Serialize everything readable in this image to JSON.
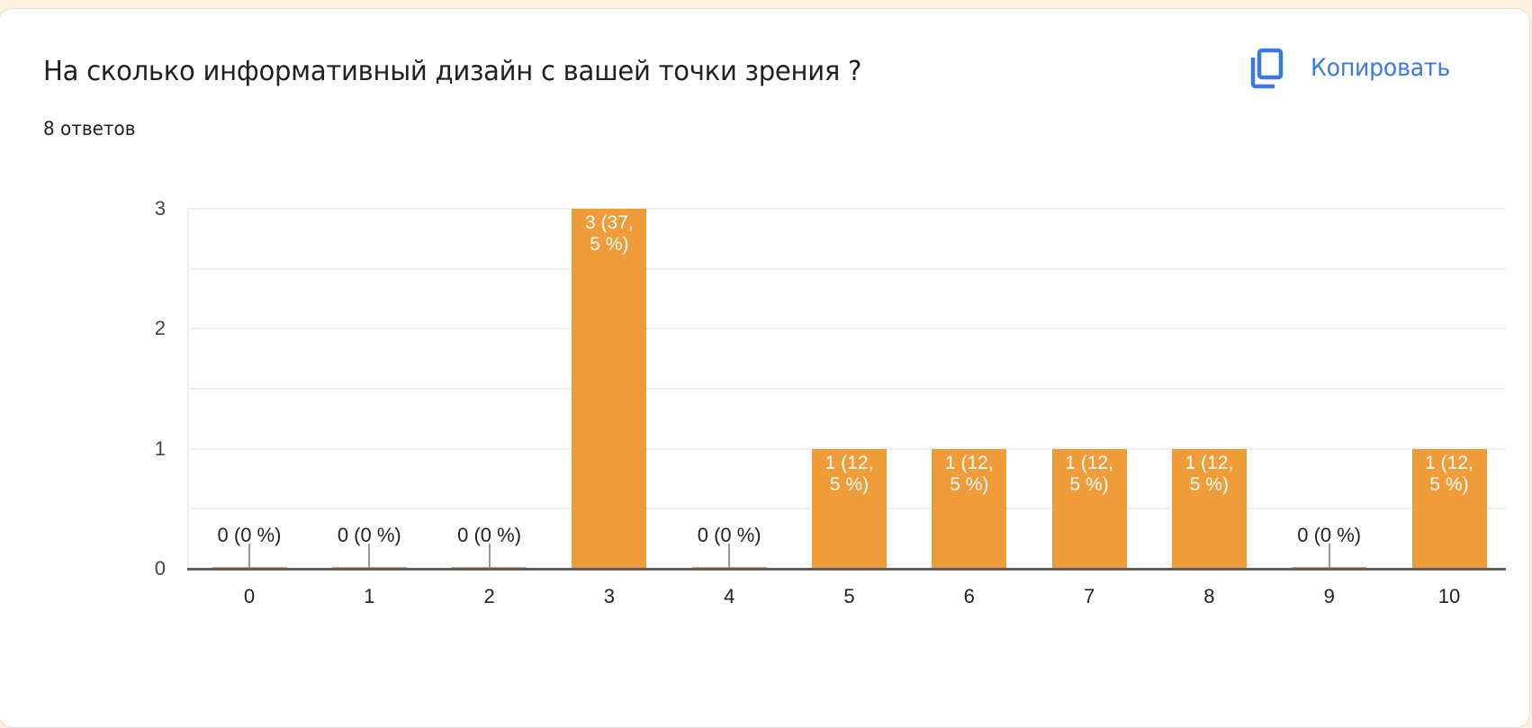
{
  "card": {
    "title": "На сколько информативный дизайн с вашей точки зрения ?",
    "subtitle": "8 ответов",
    "copy_button": {
      "label": "Копировать",
      "icon": "copy-icon"
    }
  },
  "colors": {
    "bar": "#f09c38",
    "accent": "#3a7ae0",
    "background": "#fdf0dc"
  },
  "chart_data": {
    "type": "bar",
    "title": "На сколько информативный дизайн с вашей точки зрения ?",
    "subtitle": "8 ответов",
    "xlabel": "",
    "ylabel": "",
    "categories": [
      "0",
      "1",
      "2",
      "3",
      "4",
      "5",
      "6",
      "7",
      "8",
      "9",
      "10"
    ],
    "values": [
      0,
      0,
      0,
      3,
      0,
      1,
      1,
      1,
      1,
      0,
      1
    ],
    "data_labels": [
      "0 (0 %)",
      "0 (0 %)",
      "0 (0 %)",
      "3 (37,5 %)",
      "0 (0 %)",
      "1 (12,5 %)",
      "1 (12,5 %)",
      "1 (12,5 %)",
      "1 (12,5 %)",
      "0 (0 %)",
      "1 (12,5 %)"
    ],
    "data_label_lines": [
      [
        "0 (0 %)"
      ],
      [
        "0 (0 %)"
      ],
      [
        "0 (0 %)"
      ],
      [
        "3 (37,",
        "5 %)"
      ],
      [
        "0 (0 %)"
      ],
      [
        "1 (12,",
        "5 %)"
      ],
      [
        "1 (12,",
        "5 %)"
      ],
      [
        "1 (12,",
        "5 %)"
      ],
      [
        "1 (12,",
        "5 %)"
      ],
      [
        "0 (0 %)"
      ],
      [
        "1 (12,",
        "5 %)"
      ]
    ],
    "yticks": [
      "0",
      "1",
      "2",
      "3"
    ],
    "ylim": [
      0,
      3
    ],
    "grid": true,
    "legend": null
  }
}
